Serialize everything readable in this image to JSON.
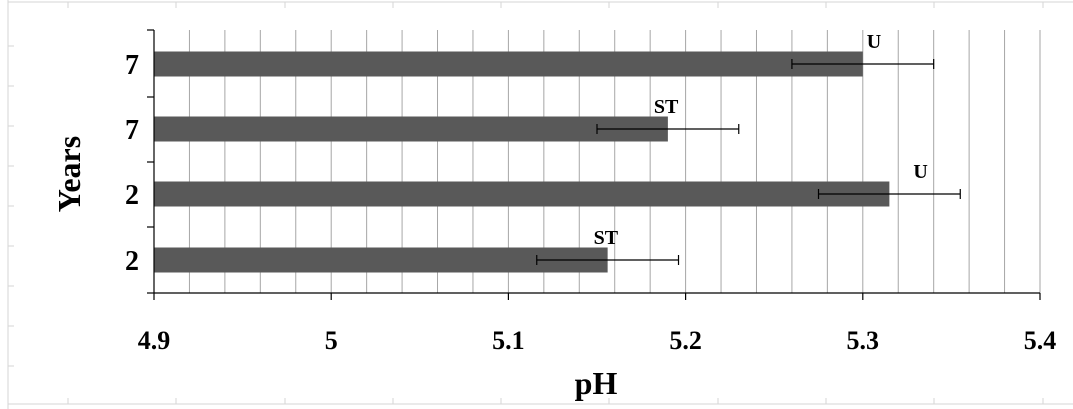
{
  "chart_data": {
    "type": "bar",
    "orientation": "horizontal",
    "title": "",
    "xlabel": "pH",
    "ylabel": "Years",
    "xlim": [
      4.9,
      5.4
    ],
    "x_ticks": [
      "4.9",
      "5",
      "5.1",
      "5.2",
      "5.3",
      "5.4"
    ],
    "minor_gridline_step": 0.02,
    "grid": true,
    "legend": "none",
    "bar_color": "#595959",
    "categories": [
      "7",
      "7",
      "2",
      "2"
    ],
    "values": [
      5.3,
      5.19,
      5.315,
      5.156
    ],
    "error": [
      0.04,
      0.04,
      0.04,
      0.04
    ],
    "bar_labels": [
      "U",
      "ST",
      "U",
      "ST"
    ]
  }
}
